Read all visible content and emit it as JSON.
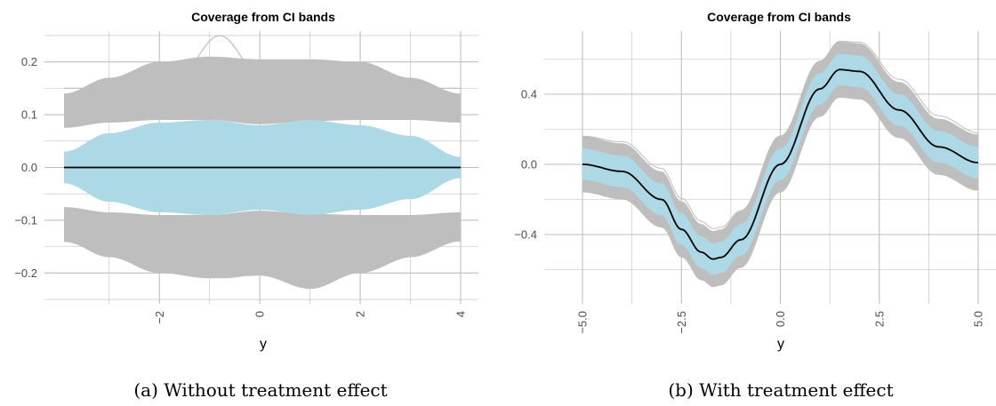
{
  "chart_data": [
    {
      "type": "line",
      "title": "Coverage from CI bands",
      "xlabel": "y",
      "ylabel": "",
      "caption": "(a) Without treatment effect",
      "xlim": [
        -3.9,
        4.0
      ],
      "ylim": [
        -0.255,
        0.255
      ],
      "x_ticks": [
        -2,
        0,
        2,
        4
      ],
      "x_tick_labels": [
        "−2",
        "0",
        "2",
        "4"
      ],
      "y_ticks": [
        0.2,
        0.1,
        0.0,
        -0.1,
        -0.2
      ],
      "y_tick_labels": [
        "0.2",
        "0.1",
        "0.0",
        "−0.1",
        "−0.2"
      ],
      "x_tick_rotation": -90,
      "grid": true,
      "colors": {
        "ci_bands": "#bebebe",
        "coverage": "#add8e6",
        "truth": "#000000",
        "grid": "#bebebe"
      },
      "series": [
        {
          "role": "ci_upper_bands",
          "color": "#bebebe",
          "x": [
            -3.9,
            -3,
            -2,
            -1,
            0,
            1,
            2,
            3,
            4
          ],
          "low": [
            0.075,
            0.085,
            0.09,
            0.09,
            0.082,
            0.088,
            0.09,
            0.09,
            0.085
          ],
          "high": [
            0.14,
            0.17,
            0.2,
            0.21,
            0.205,
            0.205,
            0.2,
            0.17,
            0.14
          ],
          "peak": 0.25
        },
        {
          "role": "ci_lower_bands",
          "color": "#bebebe",
          "x": [
            -3.9,
            -3,
            -2,
            -1,
            0,
            1,
            2,
            3,
            4
          ],
          "low": [
            -0.14,
            -0.17,
            -0.2,
            -0.21,
            -0.205,
            -0.23,
            -0.2,
            -0.17,
            -0.14
          ],
          "high": [
            -0.075,
            -0.085,
            -0.09,
            -0.09,
            -0.082,
            -0.088,
            -0.09,
            -0.09,
            -0.085
          ]
        },
        {
          "role": "coverage_band",
          "color": "#add8e6",
          "x": [
            -3.9,
            -3,
            -2,
            -1,
            0,
            1,
            2,
            3,
            4
          ],
          "low": [
            -0.03,
            -0.065,
            -0.085,
            -0.09,
            -0.08,
            -0.09,
            -0.08,
            -0.06,
            -0.02
          ],
          "high": [
            0.03,
            0.065,
            0.085,
            0.09,
            0.08,
            0.09,
            0.08,
            0.06,
            0.02
          ]
        },
        {
          "role": "truth",
          "color": "#000000",
          "x": [
            -3.9,
            4.0
          ],
          "y": [
            0.0,
            0.0
          ]
        }
      ]
    },
    {
      "type": "line",
      "title": "Coverage from CI bands",
      "xlabel": "y",
      "ylabel": "",
      "caption": "(b) With treatment effect",
      "xlim": [
        -5.3,
        5.3
      ],
      "ylim": [
        -0.7,
        0.75
      ],
      "x_ticks": [
        -5.0,
        -2.5,
        0.0,
        2.5,
        5.0
      ],
      "x_tick_labels": [
        "−5.0",
        "−2.5",
        "0.0",
        "2.5",
        "5.0"
      ],
      "y_ticks": [
        0.4,
        0.0,
        -0.4
      ],
      "y_tick_labels": [
        "0.4",
        "0.0",
        "−0.4"
      ],
      "x_tick_rotation": -90,
      "grid": true,
      "colors": {
        "ci_bands": "#bebebe",
        "coverage": "#add8e6",
        "truth": "#000000",
        "grid": "#bebebe"
      },
      "truth_curve": {
        "x": [
          -5.0,
          -4.0,
          -3.0,
          -2.5,
          -2.0,
          -1.7,
          -1.5,
          -1.0,
          0.0,
          1.0,
          1.5,
          2.0,
          3.0,
          4.0,
          5.0
        ],
        "y": [
          0.0,
          -0.04,
          -0.2,
          -0.37,
          -0.5,
          -0.54,
          -0.53,
          -0.43,
          0.0,
          0.43,
          0.54,
          0.53,
          0.31,
          0.1,
          0.01
        ]
      },
      "band_offsets": {
        "gray_inner": 0.08,
        "gray_outer": 0.14,
        "blue_half_width": 0.09
      }
    }
  ]
}
